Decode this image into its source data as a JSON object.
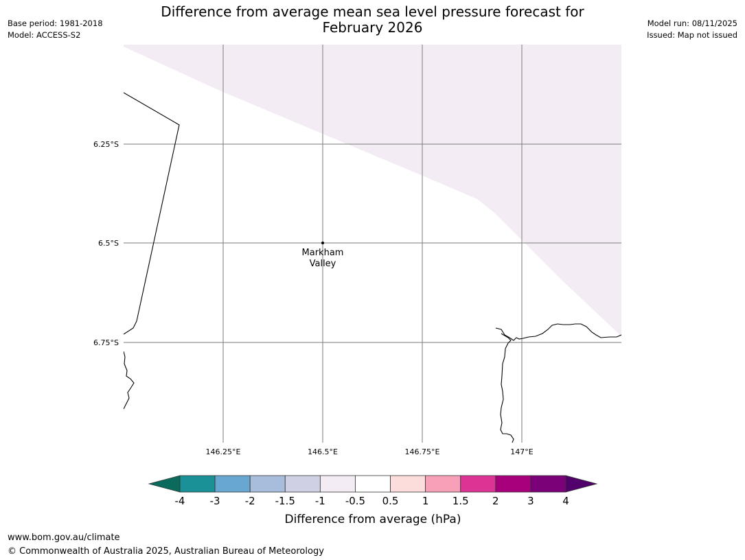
{
  "header": {
    "title_line1": "Difference from average mean sea level pressure forecast for",
    "title_line2": "February 2026",
    "base_period": "Base period: 1981-2018",
    "model": "Model: ACCESS-S2",
    "model_run": "Model run: 08/11/2025",
    "issued": "Issued: Map not issued"
  },
  "map": {
    "lat_labels": [
      "6.25°S",
      "6.5°S",
      "6.75°S"
    ],
    "lon_labels": [
      "146.25°E",
      "146.5°E",
      "146.75°E",
      "147°E"
    ],
    "place": {
      "name_line1": "Markham",
      "name_line2": "Valley"
    },
    "region_fill_color": "#f4ecf4"
  },
  "colorbar": {
    "label": "Difference from average (hPa)",
    "ticks": [
      "-4",
      "-3",
      "-2",
      "-1.5",
      "-1",
      "-0.5",
      "0.5",
      "1",
      "1.5",
      "2",
      "3",
      "4"
    ],
    "low_extend_color": "#0a6b5c",
    "high_extend_color": "#52006b",
    "colors": [
      "#1a9197",
      "#68a8d0",
      "#a8bcdc",
      "#d0d0e4",
      "#f4ecf4",
      "#ffffff",
      "#fddcdc",
      "#f8a0b8",
      "#dc3494",
      "#a8007c",
      "#7a0178"
    ]
  },
  "footer": {
    "url": "www.bom.gov.au/climate",
    "copyright": "© Commonwealth of Australia 2025, Australian Bureau of Meteorology"
  }
}
